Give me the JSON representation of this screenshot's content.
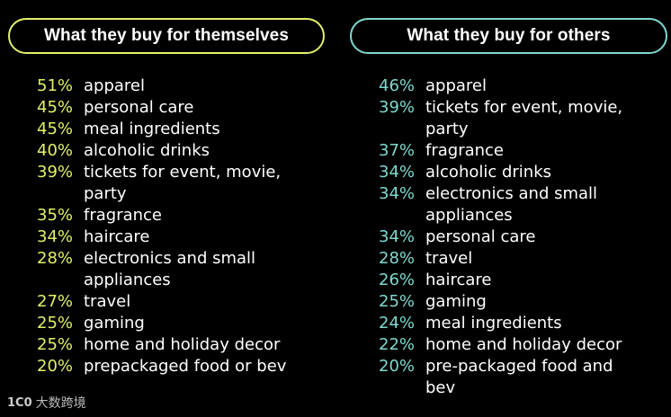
{
  "colors": {
    "left_accent": "#e3f069",
    "right_accent": "#7fd9cf"
  },
  "chart_data": [
    {
      "type": "table",
      "title": "What they buy for themselves",
      "rows": [
        {
          "value": "51%",
          "label": "apparel"
        },
        {
          "value": "45%",
          "label": "personal care"
        },
        {
          "value": "45%",
          "label": "meal ingredients"
        },
        {
          "value": "40%",
          "label": "alcoholic drinks"
        },
        {
          "value": "39%",
          "label": "tickets for event, movie, party"
        },
        {
          "value": "35%",
          "label": "fragrance"
        },
        {
          "value": "34%",
          "label": "haircare"
        },
        {
          "value": "28%",
          "label": "electronics and small appliances"
        },
        {
          "value": "27%",
          "label": "travel"
        },
        {
          "value": "25%",
          "label": "gaming"
        },
        {
          "value": "25%",
          "label": "home and holiday decor"
        },
        {
          "value": "20%",
          "label": "prepackaged food or bev"
        }
      ]
    },
    {
      "type": "table",
      "title": "What they buy for others",
      "rows": [
        {
          "value": "46%",
          "label": "apparel"
        },
        {
          "value": "39%",
          "label": "tickets for event, movie, party"
        },
        {
          "value": "37%",
          "label": "fragrance"
        },
        {
          "value": "34%",
          "label": "alcoholic drinks"
        },
        {
          "value": "34%",
          "label": "electronics and small appliances"
        },
        {
          "value": "34%",
          "label": "personal care"
        },
        {
          "value": "28%",
          "label": "travel"
        },
        {
          "value": "26%",
          "label": "haircare"
        },
        {
          "value": "25%",
          "label": "gaming"
        },
        {
          "value": "24%",
          "label": "meal ingredients"
        },
        {
          "value": "22%",
          "label": "home and holiday decor"
        },
        {
          "value": "20%",
          "label": "pre-packaged food and bev"
        }
      ]
    }
  ],
  "watermark": {
    "logo": "1C0",
    "text": "大数跨境"
  }
}
